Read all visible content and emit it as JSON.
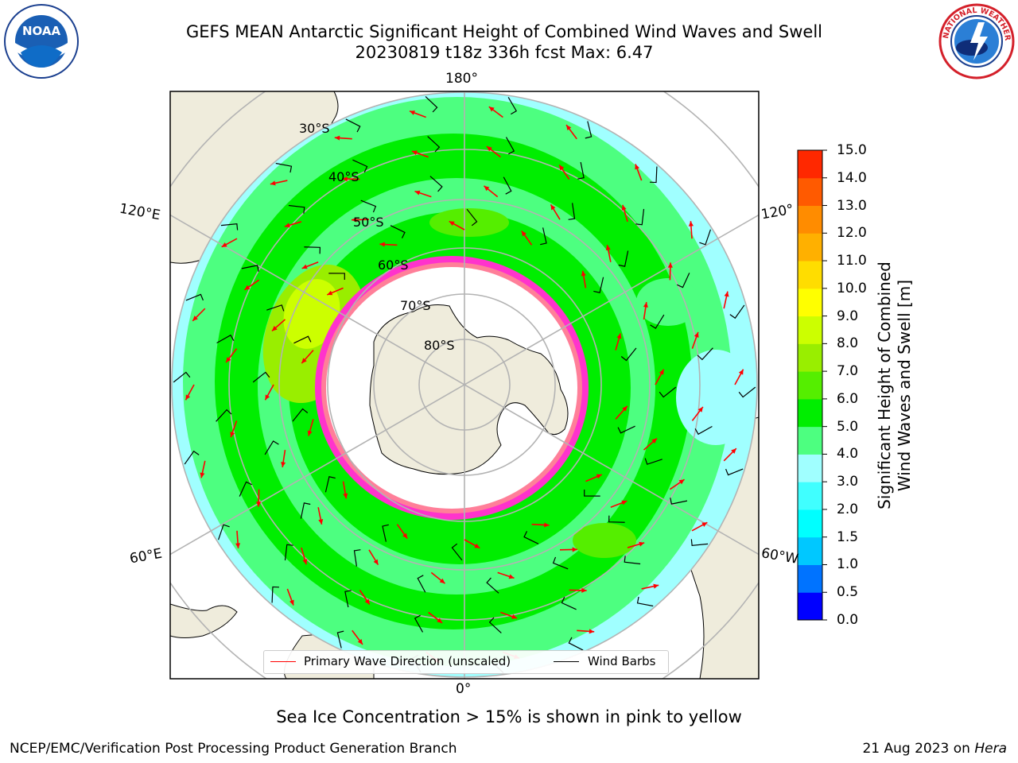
{
  "title": {
    "line1": "GEFS MEAN Antarctic Significant Height of Combined Wind Waves and Swell",
    "line2": "20230819 t18z 336h fcst   Max: 6.47"
  },
  "logos": {
    "left": {
      "text": "NOAA",
      "ring_text": "NATIONAL OCEANIC AND ATMOSPHERIC ADMINISTRATION · U.S. DEPARTMENT OF COMMERCE"
    },
    "right": {
      "ring_text": "NATIONAL WEATHER SERVICE"
    }
  },
  "map": {
    "projection": "south-polar-stereographic",
    "lon_labels": {
      "top": "180°",
      "bottom": "0°",
      "left_upper": "120°E",
      "left_lower": "60°E",
      "right_upper": "120°",
      "right_lower": "60°W"
    },
    "lat_labels": [
      "30°S",
      "40°S",
      "50°S",
      "60°S",
      "70°S",
      "80°S"
    ],
    "colors": {
      "land": "#efecdc",
      "ice": "#ffffff",
      "coast": "#000000",
      "grid": "#b3b3b3"
    }
  },
  "legend": {
    "primary_wave": "Primary Wave Direction (unscaled)",
    "wind_barbs": "Wind Barbs",
    "primary_wave_color": "#ff0000",
    "wind_barbs_color": "#000000"
  },
  "colorbar": {
    "label_line1": "Significant Height of Combined",
    "label_line2": "Wind Waves and Swell [m]",
    "ticks": [
      "0.0",
      "0.5",
      "1.0",
      "1.5",
      "2.0",
      "3.0",
      "4.0",
      "5.0",
      "6.0",
      "7.0",
      "8.0",
      "9.0",
      "10.0",
      "11.0",
      "12.0",
      "13.0",
      "14.0",
      "15.0"
    ],
    "colors": [
      "#0000ff",
      "#0073ff",
      "#00c8ff",
      "#00ffff",
      "#40ffff",
      "#a0ffff",
      "#4dff80",
      "#00ee00",
      "#55ee00",
      "#99ee00",
      "#ccff00",
      "#ffff00",
      "#ffdd00",
      "#ffb000",
      "#ff8c00",
      "#ff5a00",
      "#ff2800"
    ]
  },
  "sea_ice_note": "Sea Ice Concentration > 15% is shown in pink to yellow",
  "footer": {
    "left": "NCEP/EMC/Verification Post Processing Product Generation Branch",
    "right_date": "21 Aug 2023 on ",
    "right_host": "Hera"
  }
}
